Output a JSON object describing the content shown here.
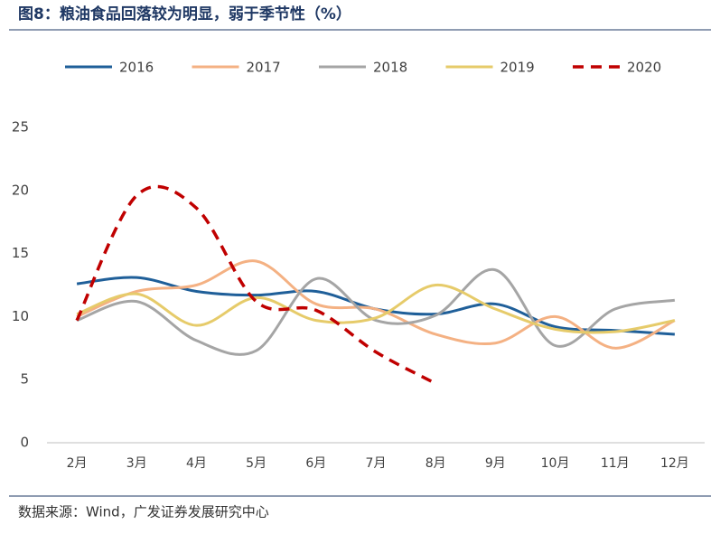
{
  "chart_data": {
    "type": "line",
    "title": "图8：粮油食品回落较为明显，弱于季节性（%）",
    "source": "数据来源：Wind，广发证券发展研究中心",
    "categories": [
      "2月",
      "3月",
      "4月",
      "5月",
      "6月",
      "7月",
      "8月",
      "9月",
      "10月",
      "11月",
      "12月"
    ],
    "series": [
      {
        "name": "2016",
        "color": "#1f5f99",
        "values": [
          12.6,
          13.1,
          12.0,
          11.7,
          12.0,
          10.6,
          10.2,
          11.0,
          9.2,
          8.9,
          8.6
        ]
      },
      {
        "name": "2017",
        "color": "#f4b183",
        "values": [
          10.0,
          12.0,
          12.5,
          14.4,
          11.0,
          10.6,
          8.6,
          7.9,
          10.0,
          7.5,
          9.7
        ]
      },
      {
        "name": "2018",
        "color": "#a5a5a5",
        "values": [
          9.7,
          11.2,
          8.1,
          7.3,
          13.0,
          9.7,
          10.1,
          13.7,
          7.7,
          10.6,
          11.3
        ]
      },
      {
        "name": "2019",
        "color": "#e6cb6a",
        "values": [
          10.2,
          11.8,
          9.3,
          11.5,
          9.7,
          9.9,
          12.5,
          10.6,
          9.0,
          8.8,
          9.7
        ]
      },
      {
        "name": "2020",
        "color": "#c00000",
        "dashed": true,
        "values": [
          9.7,
          19.6,
          18.6,
          11.2,
          10.5,
          7.2,
          4.7,
          null,
          null,
          null,
          null
        ]
      }
    ],
    "ylim": [
      0,
      25
    ],
    "yticks": [
      0,
      5,
      10,
      15,
      20,
      25
    ],
    "grid": false,
    "smooth": true,
    "legend": "top"
  }
}
